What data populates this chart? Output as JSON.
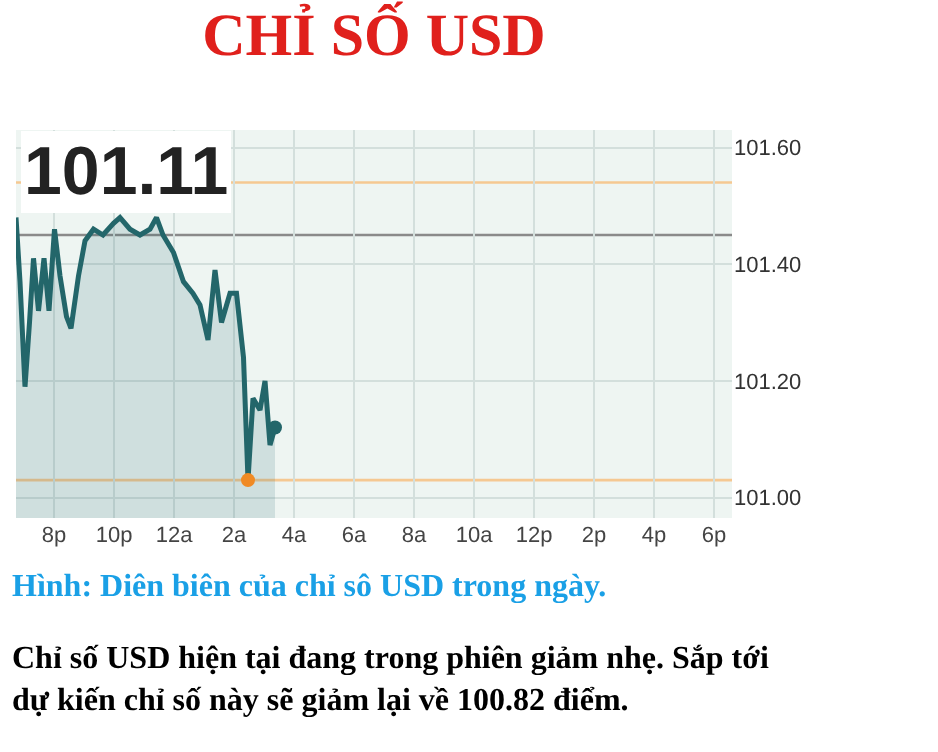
{
  "chart_data": {
    "type": "area",
    "title": "CHỈ SỐ USD",
    "annotations": [
      "101.11",
      "Hình: Diên biên của chỉ sô USD trong ngày.",
      "Chỉ số USD hiện tại đang trong phiên giảm nhẹ. Sắp tới dự kiến chỉ số này sẽ giảm lại về 100.82 điểm."
    ],
    "series": [
      {
        "color": "#23666a",
        "x": [
          "--01-01T18:44",
          "--01-01T18:52",
          "--01-01T19:02",
          "--01-01T19:11",
          "--01-01T19:19",
          "--01-01T19:29",
          "--01-01T19:40",
          "--01-01T19:50",
          "--01-01T20:01",
          "--01-01T20:12",
          "--01-01T20:25",
          "--01-01T20:34",
          "--01-01T20:49",
          "--01-01T21:02",
          "--01-01T21:19",
          "--01-01T21:38",
          "--01-01T21:59",
          "--01-01T22:12",
          "--01-01T22:32",
          "--01-01T22:52",
          "--01-01T23:12",
          "--01-01T23:25",
          "--01-01T23:38",
          "--01-01T23:59",
          "--01-02T00:19",
          "--01-02T00:38",
          "--01-02T00:52",
          "--01-02T01:08",
          "--01-02T01:22",
          "--01-02T01:35",
          "--01-02T01:52",
          "--01-02T02:05",
          "--01-02T02:19",
          "--01-02T02:28",
          "--01-02T02:38",
          "--01-02T02:52",
          "--01-02T03:02",
          "--01-02T03:12",
          "--01-02T03:22"
        ],
        "values": [
          101.48,
          101.37,
          101.19,
          101.3,
          101.41,
          101.32,
          101.41,
          101.32,
          101.46,
          101.38,
          101.31,
          101.29,
          101.38,
          101.44,
          101.46,
          101.45,
          101.47,
          101.48,
          101.46,
          101.45,
          101.46,
          101.48,
          101.45,
          101.42,
          101.37,
          101.35,
          101.33,
          101.27,
          101.39,
          101.3,
          101.35,
          101.35,
          101.24,
          101.03,
          101.17,
          101.15,
          101.2,
          101.09,
          101.12
        ]
      },
      {
        "type": "scatter",
        "marker": "circle",
        "color": "#f08a24",
        "x": [
          "--01-02T02:28"
        ],
        "values": [
          101.03
        ]
      },
      {
        "type": "scatter",
        "marker": "circle",
        "color": "#23666a",
        "x": [
          "--01-02T03:22"
        ],
        "values": [
          101.12
        ]
      }
    ],
    "xlim": [
      "--01-01T18:44",
      "--01-02T18:36"
    ],
    "ylim": [
      100.965,
      101.63
    ],
    "xticks": [
      {
        "value": "--01-01T20:00",
        "label": "8p"
      },
      {
        "value": "--01-01T22:00",
        "label": "10p"
      },
      {
        "value": "--01-02T00:00",
        "label": "12a"
      },
      {
        "value": "--01-02T02:00",
        "label": "2a"
      },
      {
        "value": "--01-02T04:00",
        "label": "4a"
      },
      {
        "value": "--01-02T06:00",
        "label": "6a"
      },
      {
        "value": "--01-02T08:00",
        "label": "8a"
      },
      {
        "value": "--01-02T10:00",
        "label": "10a"
      },
      {
        "value": "--01-02T12:00",
        "label": "12p"
      },
      {
        "value": "--01-02T14:00",
        "label": "2p"
      },
      {
        "value": "--01-02T16:00",
        "label": "4p"
      },
      {
        "value": "--01-02T18:00",
        "label": "6p"
      }
    ],
    "yticks": [
      {
        "value": 101.0,
        "label": "101.00"
      },
      {
        "value": 101.2,
        "label": "101.20"
      },
      {
        "value": 101.4,
        "label": "101.40"
      },
      {
        "value": 101.6,
        "label": "101.60"
      }
    ],
    "ref_lines": [
      {
        "axis": "y",
        "value": 101.54,
        "color": "#f5c892"
      },
      {
        "axis": "y",
        "value": 101.45,
        "color": "#8a8a8a"
      },
      {
        "axis": "y",
        "value": 101.03,
        "color": "#f5c892"
      }
    ],
    "grid": true,
    "marker": "none",
    "line_style": "solid"
  }
}
